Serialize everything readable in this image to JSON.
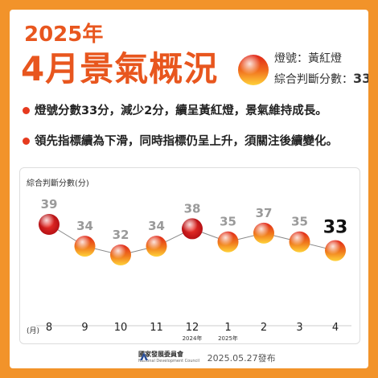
{
  "header": {
    "year": "2025年",
    "title": "4月景氣概況",
    "light_label": "燈號：",
    "light_value": "黃紅燈",
    "score_label": "綜合判斷分數：",
    "score_value": "33"
  },
  "bullets": [
    "燈號分數33分，減少2分，續呈黃紅燈，景氣維持成長。",
    "領先指標續為下滑，同時指標仍呈上升，須關注後續變化。"
  ],
  "footer": {
    "org_name": "國家發展委員會",
    "org_name_en": "National Development Council",
    "publish": "2025.05.27發布"
  },
  "colors": {
    "brand_orange": "#e8561e",
    "frame_orange": "#f2932a",
    "red_light": "#d9151b",
    "yellow_red_light": "#f08a1c"
  },
  "chart_data": {
    "type": "line",
    "ylabel": "綜合判斷分數(分)",
    "xlabel": "(月)",
    "categories": [
      "8",
      "9",
      "10",
      "11",
      "12",
      "1",
      "2",
      "3",
      "4"
    ],
    "year_labels": [
      {
        "category": "12",
        "label": "2024年"
      },
      {
        "category": "1",
        "label": "2025年"
      }
    ],
    "values": [
      39,
      34,
      32,
      34,
      38,
      35,
      37,
      35,
      33
    ],
    "lights": [
      "red",
      "yellow-red",
      "yellow-red",
      "yellow-red",
      "red",
      "yellow-red",
      "yellow-red",
      "yellow-red",
      "yellow-red"
    ],
    "highlight_last": true,
    "ylim": [
      28,
      42
    ],
    "grid": false
  }
}
